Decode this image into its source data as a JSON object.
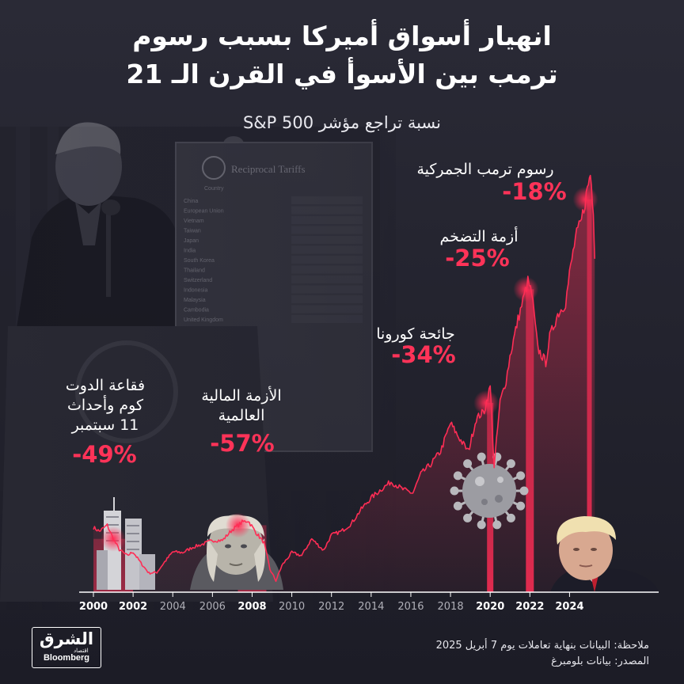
{
  "header": {
    "title_line1": "انهيار أسواق أميركا بسبب رسوم",
    "title_line2": "ترمب بين الأسوأ في القرن الـ 21",
    "subtitle": "نسبة تراجع مؤشر S&P 500"
  },
  "photo": {
    "board_heading": "Reciprocal Tariffs",
    "board_column": "Country",
    "board_countries": [
      "China",
      "European Union",
      "Vietnam",
      "Taiwan",
      "Japan",
      "India",
      "South Korea",
      "Thailand",
      "Switzerland",
      "Indonesia",
      "Malaysia",
      "Cambodia",
      "United Kingdom"
    ]
  },
  "events": [
    {
      "id": "dotcom",
      "label_lines": [
        "فقاعة الدوت",
        "كوم وأحداث",
        "11 سبتمبر"
      ],
      "pct": "-49%",
      "x": 2001.0,
      "band_x": 2001.0,
      "icon": "twin-towers-icon"
    },
    {
      "id": "gfc",
      "label_lines": [
        "الأزمة المالية",
        "العالمية"
      ],
      "pct": "-57%",
      "x": 2007.3,
      "band_x": 2008.0,
      "icon": "benjamin-franklin-icon"
    },
    {
      "id": "covid",
      "label_lines": [
        "جائحة كورونا"
      ],
      "pct": "-34%",
      "x": 2019.8,
      "band_x": 2020.0,
      "icon": "coronavirus-icon"
    },
    {
      "id": "inflation",
      "label_lines": [
        "أزمة التضخم"
      ],
      "pct": "-25%",
      "x": 2021.8,
      "band_x": 2022.0,
      "icon": null
    },
    {
      "id": "tariffs",
      "label_lines": [
        "رسوم ترمب الجمركية"
      ],
      "pct": "-18%",
      "x": 2024.8,
      "band_x": 2025.0,
      "icon": "trump-portrait-icon"
    }
  ],
  "chart_data": {
    "type": "line",
    "title": "انهيار أسواق أميركا بسبب رسوم ترمب بين الأسوأ في القرن الـ 21",
    "subtitle": "نسبة تراجع مؤشر S&P 500",
    "x_ticks": [
      {
        "label": "2000",
        "value": 2000,
        "bold": true
      },
      {
        "label": "2002",
        "value": 2002,
        "bold": true
      },
      {
        "label": "2004",
        "value": 2004,
        "bold": false
      },
      {
        "label": "2006",
        "value": 2006,
        "bold": false
      },
      {
        "label": "2008",
        "value": 2008,
        "bold": true
      },
      {
        "label": "2010",
        "value": 2010,
        "bold": false
      },
      {
        "label": "2012",
        "value": 2012,
        "bold": false
      },
      {
        "label": "2014",
        "value": 2014,
        "bold": false
      },
      {
        "label": "2016",
        "value": 2016,
        "bold": false
      },
      {
        "label": "2018",
        "value": 2018,
        "bold": false
      },
      {
        "label": "2020",
        "value": 2020,
        "bold": true
      },
      {
        "label": "2022",
        "value": 2022,
        "bold": true
      },
      {
        "label": "2024",
        "value": 2024,
        "bold": true
      }
    ],
    "xlim": [
      2000,
      2025.3
    ],
    "ylim": [
      600,
      6300
    ],
    "grid": false,
    "series": [
      {
        "color": "#ff2d55",
        "x": [
          2000.0,
          2000.3,
          2000.7,
          2001.0,
          2001.3,
          2001.7,
          2002.0,
          2002.4,
          2002.8,
          2003.2,
          2003.6,
          2004.0,
          2004.5,
          2005.0,
          2005.5,
          2006.0,
          2006.5,
          2007.0,
          2007.5,
          2007.8,
          2008.2,
          2008.6,
          2008.9,
          2009.2,
          2009.5,
          2010.0,
          2010.5,
          2011.0,
          2011.6,
          2012.0,
          2012.5,
          2013.0,
          2013.5,
          2014.0,
          2014.5,
          2015.0,
          2015.6,
          2016.1,
          2016.5,
          2017.0,
          2017.5,
          2018.0,
          2018.4,
          2018.9,
          2019.3,
          2019.7,
          2020.0,
          2020.2,
          2020.5,
          2020.8,
          2021.0,
          2021.4,
          2021.9,
          2022.1,
          2022.4,
          2022.8,
          2023.0,
          2023.4,
          2023.8,
          2024.0,
          2024.3,
          2024.6,
          2024.9,
          2025.05,
          2025.2,
          2025.27
        ],
        "y": [
          1450,
          1400,
          1480,
          1300,
          1160,
          1080,
          1130,
          980,
          850,
          860,
          1000,
          1130,
          1120,
          1190,
          1230,
          1280,
          1280,
          1420,
          1520,
          1540,
          1380,
          1250,
          900,
          750,
          950,
          1120,
          1080,
          1300,
          1150,
          1350,
          1400,
          1500,
          1690,
          1840,
          1950,
          2050,
          1950,
          1900,
          2150,
          2280,
          2450,
          2820,
          2640,
          2450,
          2880,
          2980,
          3300,
          2250,
          3100,
          3380,
          3700,
          4180,
          4680,
          4520,
          3800,
          3620,
          3950,
          4250,
          4400,
          4780,
          5250,
          5480,
          5900,
          6100,
          5650,
          4980
        ]
      }
    ]
  },
  "footer": {
    "note": "ملاحظة: البيانات بنهاية تعاملات يوم 7 أبريل 2025",
    "source": "المصدر: بيانات بلومبرغ"
  },
  "logo": {
    "arabic": "الشرق",
    "arabic_sub": "اقتصاد",
    "english": "Bloomberg"
  },
  "colors": {
    "background": "#1f1f2a",
    "accent": "#ff2d55",
    "text": "#ffffff"
  }
}
